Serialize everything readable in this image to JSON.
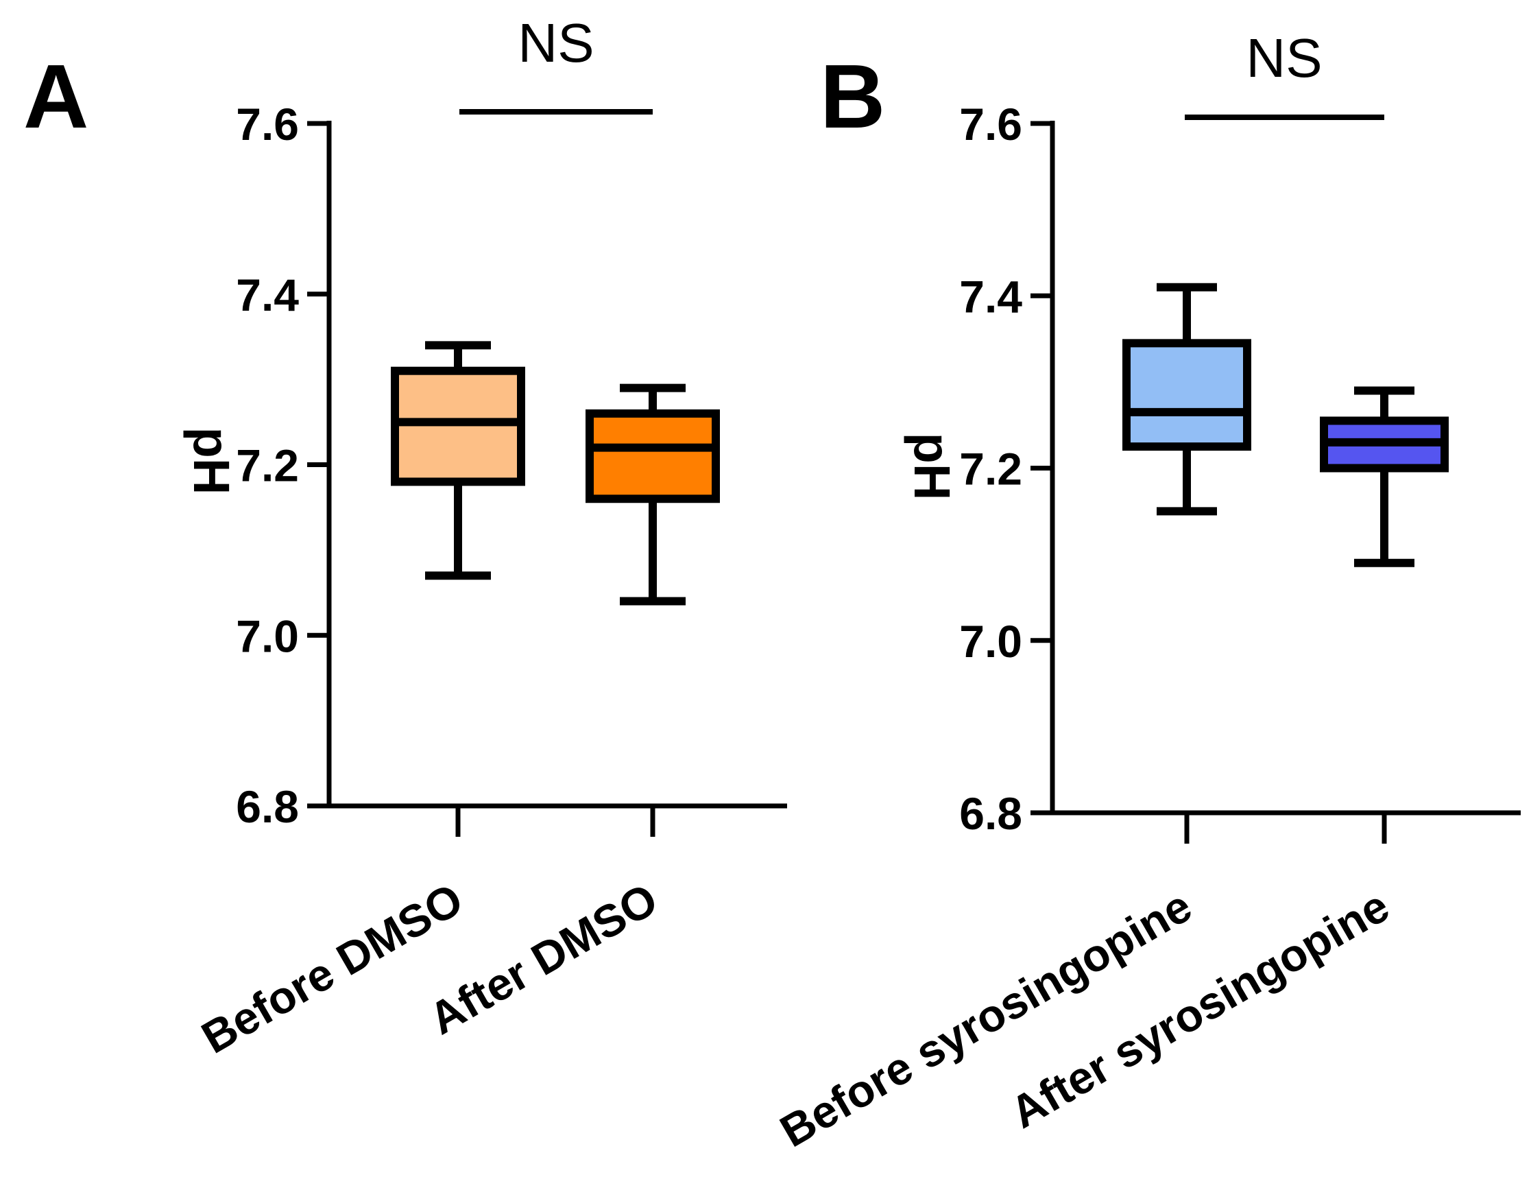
{
  "chart_data": [
    {
      "type": "boxplot",
      "panel": "A",
      "significance": "NS",
      "ylabel": "pH",
      "ylim": [
        6.8,
        7.6
      ],
      "yticks": [
        "6.8",
        "7.0",
        "7.2",
        "7.4",
        "7.6"
      ],
      "categories": [
        "Before DMSO",
        "After DMSO"
      ],
      "colors": [
        "#FDBF86",
        "#FF7F00"
      ],
      "boxes": [
        {
          "min": 7.07,
          "q1": 7.18,
          "median": 7.25,
          "q3": 7.31,
          "max": 7.34
        },
        {
          "min": 7.04,
          "q1": 7.16,
          "median": 7.22,
          "q3": 7.26,
          "max": 7.29
        }
      ]
    },
    {
      "type": "boxplot",
      "panel": "B",
      "significance": "NS",
      "ylabel": "pH",
      "ylim": [
        6.8,
        7.6
      ],
      "yticks": [
        "6.8",
        "7.0",
        "7.2",
        "7.4",
        "7.6"
      ],
      "categories": [
        "Before syrosingopine",
        "After syrosingopine"
      ],
      "colors": [
        "#92BEF5",
        "#5555F0"
      ],
      "boxes": [
        {
          "min": 7.15,
          "q1": 7.225,
          "median": 7.265,
          "q3": 7.345,
          "max": 7.41
        },
        {
          "min": 7.09,
          "q1": 7.2,
          "median": 7.23,
          "q3": 7.255,
          "max": 7.29
        }
      ]
    }
  ]
}
